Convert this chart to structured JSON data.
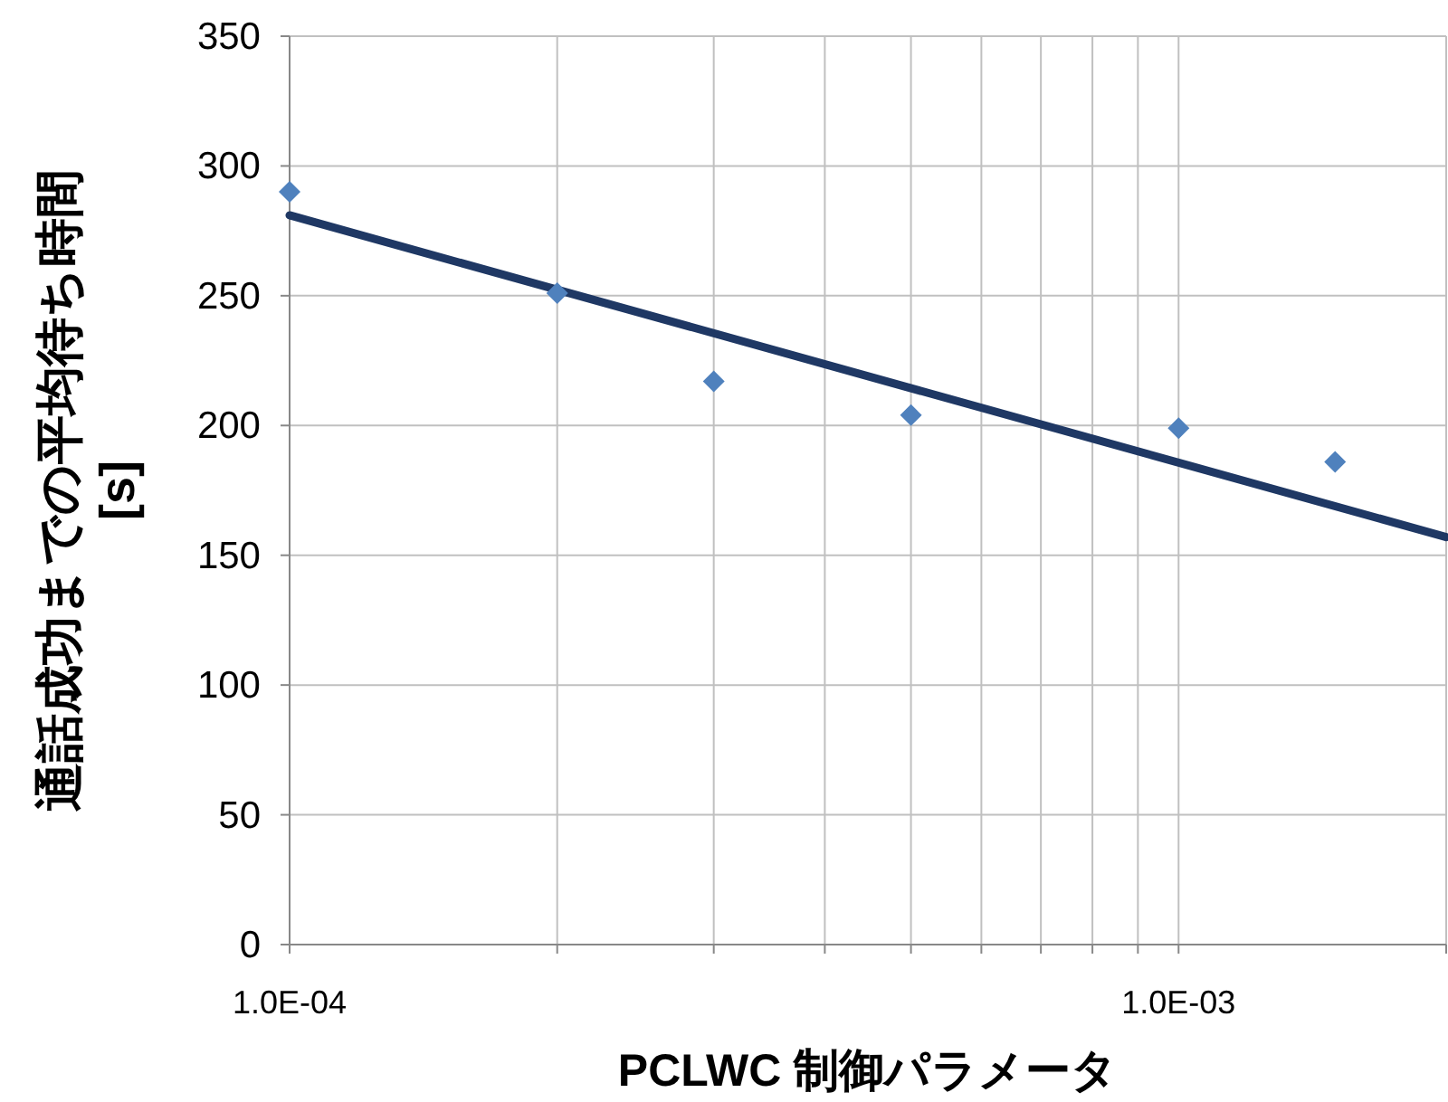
{
  "chart_data": {
    "type": "scatter",
    "xlabel": "PCLWC 制御パラメータ",
    "ylabel": "通話成功までの平均待ち時間 [s]",
    "log": "x",
    "grid": true,
    "marker": "diamond",
    "xlim": [
      0.0001,
      0.002
    ],
    "ylim": [
      0,
      350
    ],
    "xticks": [
      {
        "value": 0.0001,
        "label": "1.0E-04"
      },
      {
        "value": 0.0002,
        "label": null
      },
      {
        "value": 0.0003,
        "label": null
      },
      {
        "value": 0.0004,
        "label": null
      },
      {
        "value": 0.0005,
        "label": null
      },
      {
        "value": 0.0006,
        "label": null
      },
      {
        "value": 0.0007,
        "label": null
      },
      {
        "value": 0.0008,
        "label": null
      },
      {
        "value": 0.0009,
        "label": null
      },
      {
        "value": 0.001,
        "label": "1.0E-03"
      },
      {
        "value": 0.002,
        "label": null
      }
    ],
    "yticks": [
      0,
      50,
      100,
      150,
      200,
      250,
      300,
      350
    ],
    "series": [
      {
        "type": "scatter",
        "color": "#4f81bd",
        "x": [
          0.0001,
          0.0002,
          0.0003,
          0.0005,
          0.001,
          0.0015
        ],
        "values": [
          290,
          251,
          217,
          204,
          199,
          186
        ]
      },
      {
        "type": "line",
        "color": "#1f3864",
        "line_style": "solid",
        "marker": "none",
        "x": [
          0.0001,
          0.002
        ],
        "values": [
          281,
          157
        ]
      }
    ]
  }
}
